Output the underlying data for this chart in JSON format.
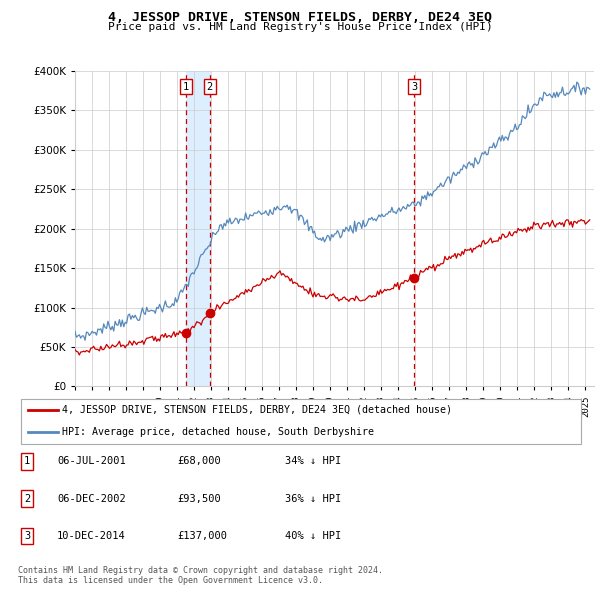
{
  "title": "4, JESSOP DRIVE, STENSON FIELDS, DERBY, DE24 3EQ",
  "subtitle": "Price paid vs. HM Land Registry's House Price Index (HPI)",
  "footer_line1": "Contains HM Land Registry data © Crown copyright and database right 2024.",
  "footer_line2": "This data is licensed under the Open Government Licence v3.0.",
  "legend_red": "4, JESSOP DRIVE, STENSON FIELDS, DERBY, DE24 3EQ (detached house)",
  "legend_blue": "HPI: Average price, detached house, South Derbyshire",
  "transactions": [
    {
      "label": "1",
      "date": "06-JUL-2001",
      "price": "£68,000",
      "pct": "34% ↓ HPI",
      "year": 2001.54
    },
    {
      "label": "2",
      "date": "06-DEC-2002",
      "price": "£93,500",
      "pct": "36% ↓ HPI",
      "year": 2002.92
    },
    {
      "label": "3",
      "date": "10-DEC-2014",
      "price": "£137,000",
      "pct": "40% ↓ HPI",
      "year": 2014.92
    }
  ],
  "x_start": 1995.0,
  "x_end": 2025.5,
  "y_min": 0,
  "y_max": 400000,
  "y_ticks": [
    0,
    50000,
    100000,
    150000,
    200000,
    250000,
    300000,
    350000,
    400000
  ],
  "x_ticks": [
    1995,
    1996,
    1997,
    1998,
    1999,
    2000,
    2001,
    2002,
    2003,
    2004,
    2005,
    2006,
    2007,
    2008,
    2009,
    2010,
    2011,
    2012,
    2013,
    2014,
    2015,
    2016,
    2017,
    2018,
    2019,
    2020,
    2021,
    2022,
    2023,
    2024,
    2025
  ],
  "red_color": "#cc0000",
  "blue_color": "#5588bb",
  "blue_fill": "#ddeeff",
  "vline_color": "#cc0000",
  "grid_color": "#cccccc",
  "bg_color": "#ffffff"
}
